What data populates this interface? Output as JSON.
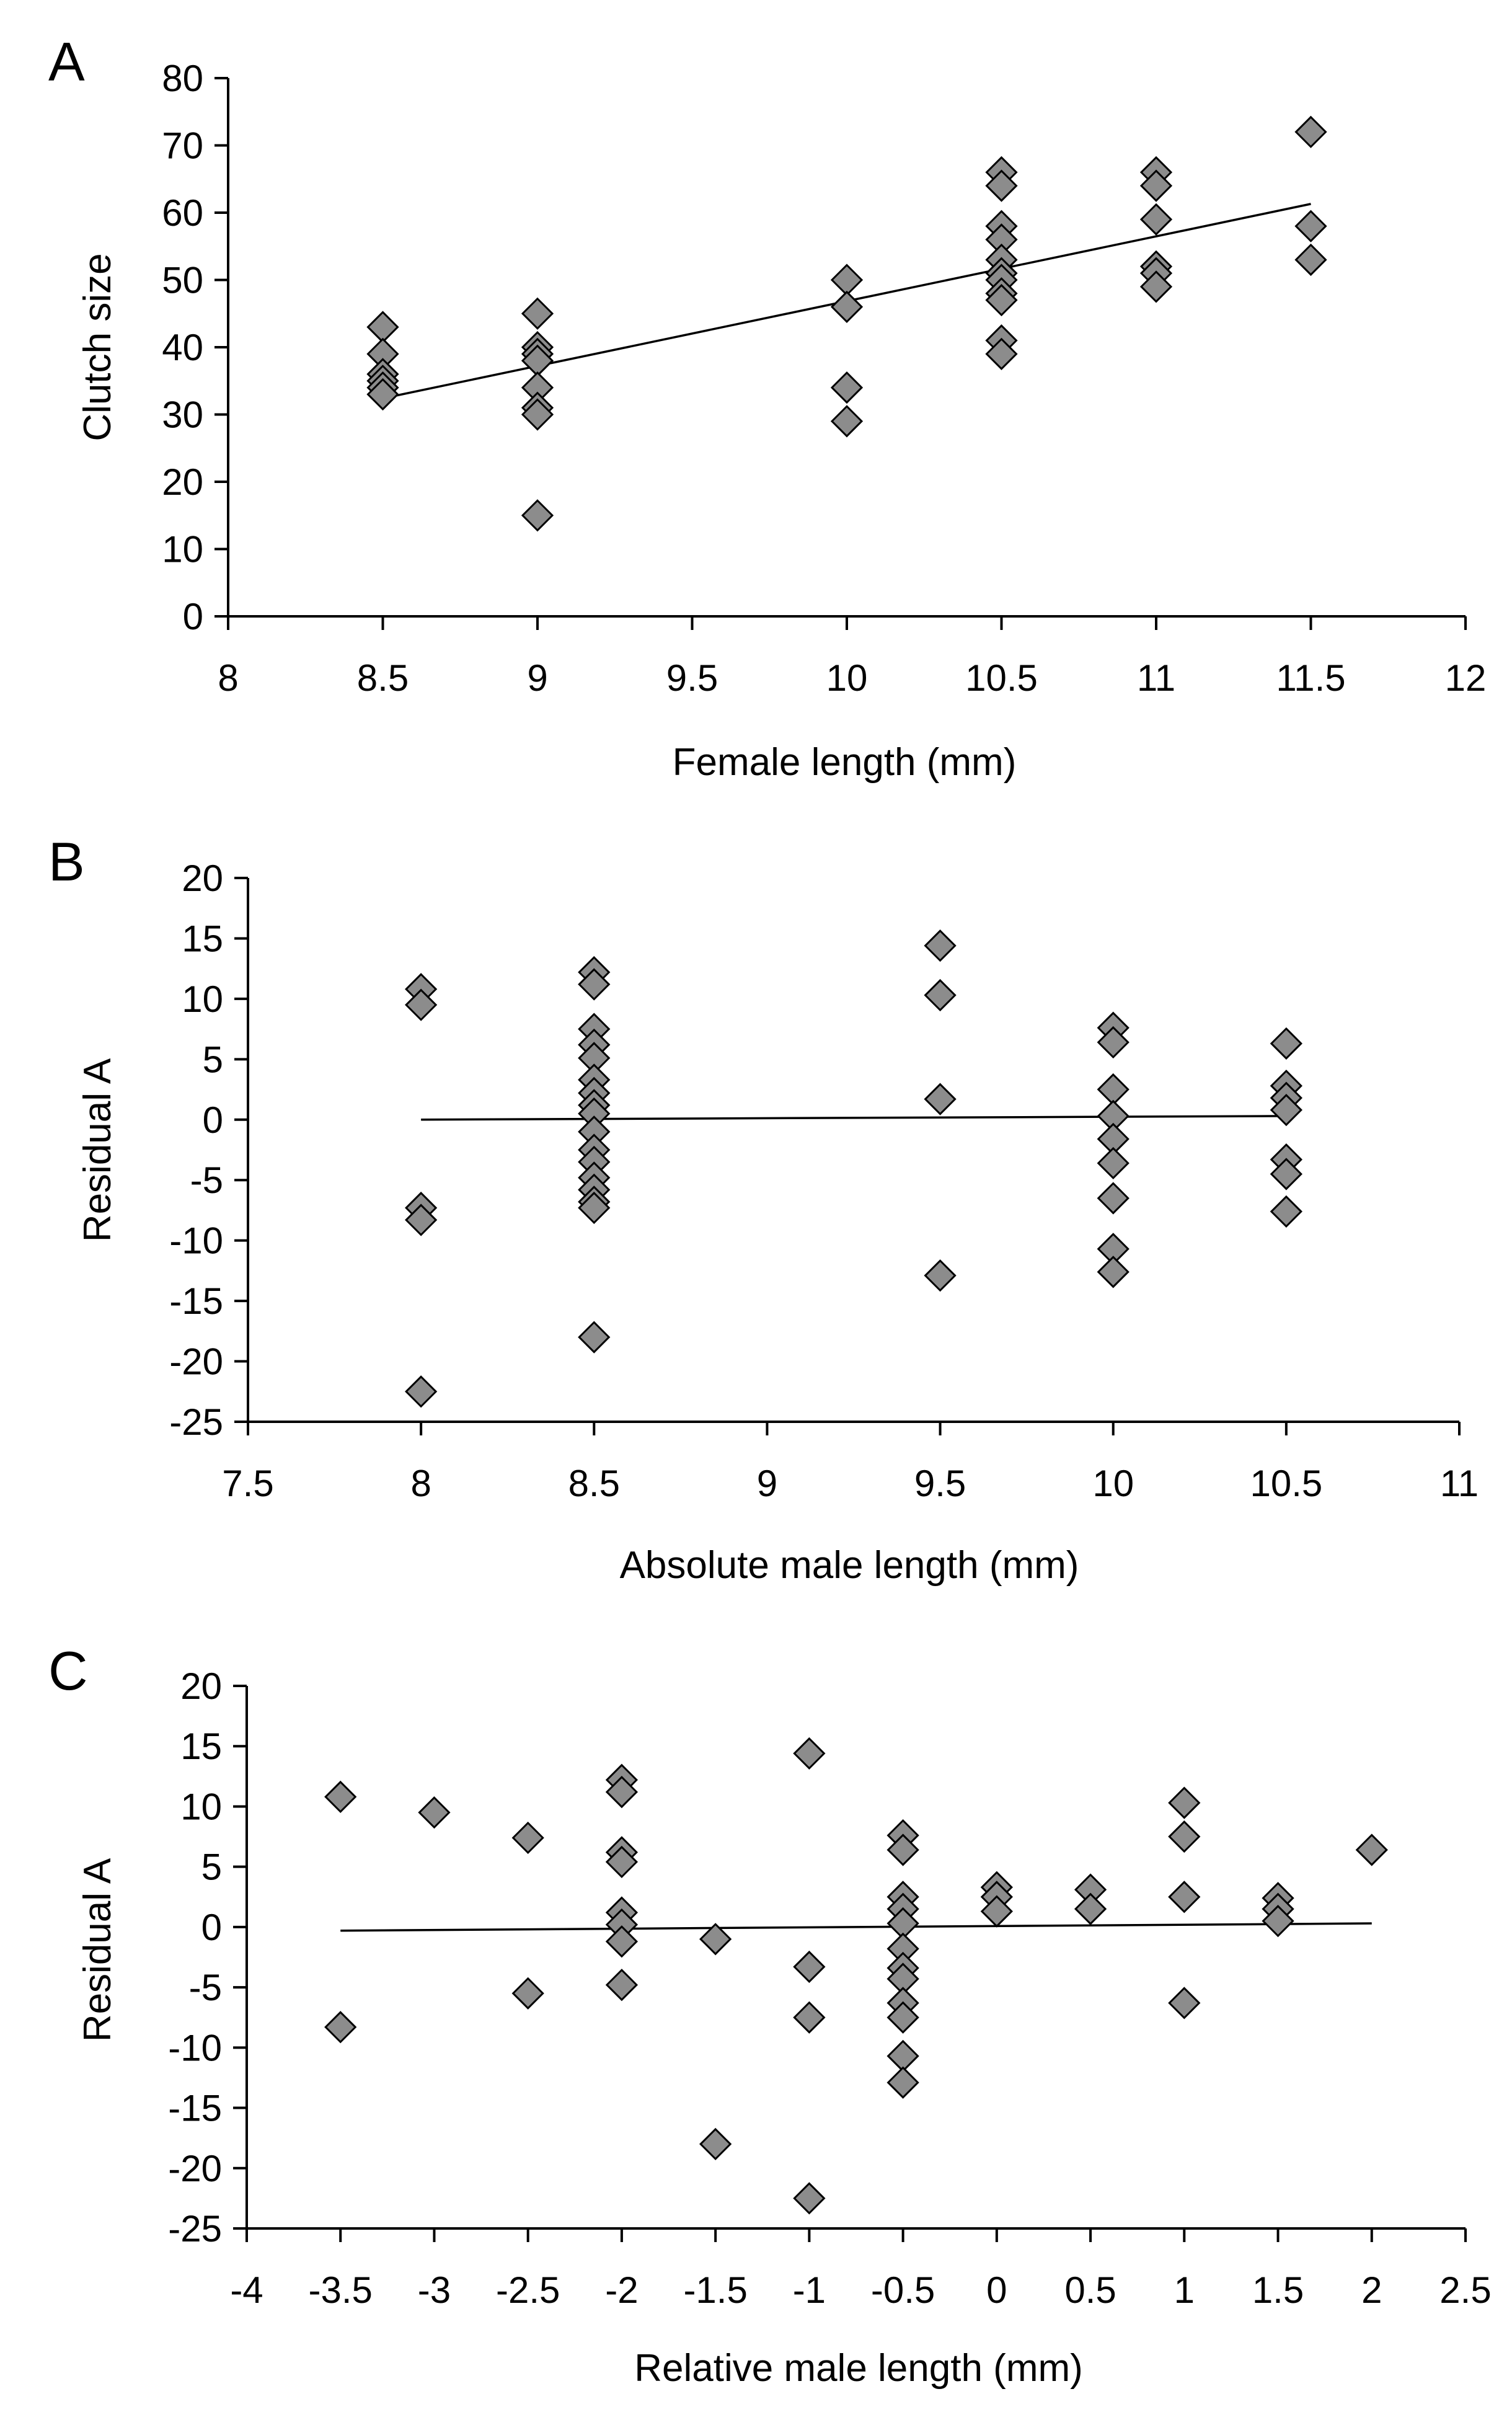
{
  "colors": {
    "marker_fill": "#8c8c8c",
    "marker_stroke": "#000000",
    "axis": "#000000",
    "trend_line": "#000000"
  },
  "chart_data": [
    {
      "type": "scatter",
      "panel_label": "A",
      "xlabel": "Female length (mm)",
      "ylabel": "Clutch size",
      "xlim": [
        8,
        12
      ],
      "ylim": [
        0,
        80
      ],
      "xticks": [
        8,
        8.5,
        9,
        9.5,
        10,
        10.5,
        11,
        11.5,
        12
      ],
      "yticks": [
        0,
        10,
        20,
        30,
        40,
        50,
        60,
        70,
        80
      ],
      "tick_labels_x": [
        "8",
        "8.5",
        "9",
        "9.5",
        "10",
        "10.5",
        "11",
        "11.5",
        "12"
      ],
      "tick_labels_y": [
        "0",
        "10",
        "20",
        "30",
        "40",
        "50",
        "60",
        "70",
        "80"
      ],
      "marker": "diamond",
      "points": [
        [
          8.5,
          43
        ],
        [
          8.5,
          39
        ],
        [
          8.5,
          36
        ],
        [
          8.5,
          35
        ],
        [
          8.5,
          34
        ],
        [
          8.5,
          33
        ],
        [
          9,
          45
        ],
        [
          9,
          40
        ],
        [
          9,
          39
        ],
        [
          9,
          38
        ],
        [
          9,
          34
        ],
        [
          9,
          31
        ],
        [
          9,
          30
        ],
        [
          9,
          15
        ],
        [
          10,
          50
        ],
        [
          10,
          46
        ],
        [
          10,
          34
        ],
        [
          10,
          29
        ],
        [
          10.5,
          66
        ],
        [
          10.5,
          64
        ],
        [
          10.5,
          58
        ],
        [
          10.5,
          56
        ],
        [
          10.5,
          53
        ],
        [
          10.5,
          51
        ],
        [
          10.5,
          50
        ],
        [
          10.5,
          48
        ],
        [
          10.5,
          47
        ],
        [
          10.5,
          41
        ],
        [
          10.5,
          39
        ],
        [
          11,
          66
        ],
        [
          11,
          64
        ],
        [
          11,
          59
        ],
        [
          11,
          52
        ],
        [
          11,
          51
        ],
        [
          11,
          49
        ],
        [
          11.5,
          72
        ],
        [
          11.5,
          58
        ],
        [
          11.5,
          53
        ]
      ],
      "trend_line": [
        [
          8.5,
          32.4
        ],
        [
          11.5,
          61.3
        ]
      ]
    },
    {
      "type": "scatter",
      "panel_label": "B",
      "xlabel": "Absolute male length (mm)",
      "ylabel": "Residual A",
      "xlim": [
        7.5,
        11
      ],
      "ylim": [
        -25,
        20
      ],
      "xticks": [
        7.5,
        8,
        8.5,
        9,
        9.5,
        10,
        10.5,
        11
      ],
      "yticks": [
        -25,
        -20,
        -15,
        -10,
        -5,
        0,
        5,
        10,
        15,
        20
      ],
      "tick_labels_x": [
        "7.5",
        "8",
        "8.5",
        "9",
        "9.5",
        "10",
        "10.5",
        "11"
      ],
      "tick_labels_y": [
        "-25",
        "-20",
        "-15",
        "-10",
        "-5",
        "0",
        "5",
        "10",
        "15",
        "20"
      ],
      "marker": "diamond",
      "points": [
        [
          8,
          10.8
        ],
        [
          8,
          9.5
        ],
        [
          8,
          -7.3
        ],
        [
          8,
          -8.3
        ],
        [
          8,
          -22.5
        ],
        [
          8.5,
          12.2
        ],
        [
          8.5,
          11.2
        ],
        [
          8.5,
          7.5
        ],
        [
          8.5,
          6.2
        ],
        [
          8.5,
          5.1
        ],
        [
          8.5,
          3.3
        ],
        [
          8.5,
          2.2
        ],
        [
          8.5,
          1.2
        ],
        [
          8.5,
          0.5
        ],
        [
          8.5,
          -1.0
        ],
        [
          8.5,
          -2.5
        ],
        [
          8.5,
          -3.5
        ],
        [
          8.5,
          -4.8
        ],
        [
          8.5,
          -5.8
        ],
        [
          8.5,
          -6.8
        ],
        [
          8.5,
          -7.3
        ],
        [
          8.5,
          -18.0
        ],
        [
          9.5,
          14.4
        ],
        [
          9.5,
          10.3
        ],
        [
          9.5,
          1.7
        ],
        [
          9.5,
          -12.9
        ],
        [
          10,
          7.6
        ],
        [
          10,
          6.4
        ],
        [
          10,
          2.5
        ],
        [
          10,
          0.3
        ],
        [
          10,
          -1.6
        ],
        [
          10,
          -3.6
        ],
        [
          10,
          -6.5
        ],
        [
          10,
          -10.7
        ],
        [
          10,
          -12.6
        ],
        [
          10.5,
          6.3
        ],
        [
          10.5,
          2.8
        ],
        [
          10.5,
          1.8
        ],
        [
          10.5,
          0.8
        ],
        [
          10.5,
          -3.3
        ],
        [
          10.5,
          -4.5
        ],
        [
          10.5,
          -7.6
        ]
      ],
      "trend_line": [
        [
          8,
          0.0
        ],
        [
          10.5,
          0.3
        ]
      ]
    },
    {
      "type": "scatter",
      "panel_label": "C",
      "xlabel": "Relative male length (mm)",
      "ylabel": "Residual A",
      "xlim": [
        -4,
        2.5
      ],
      "ylim": [
        -25,
        20
      ],
      "xticks": [
        -4,
        -3.5,
        -3,
        -2.5,
        -2,
        -1.5,
        -1,
        -0.5,
        0,
        0.5,
        1,
        1.5,
        2,
        2.5
      ],
      "yticks": [
        -25,
        -20,
        -15,
        -10,
        -5,
        0,
        5,
        10,
        15,
        20
      ],
      "tick_labels_x": [
        "-4",
        "-3.5",
        "-3",
        "-2.5",
        "-2",
        "-1.5",
        "-1",
        "-0.5",
        "0",
        "0.5",
        "1",
        "1.5",
        "2",
        "2.5"
      ],
      "tick_labels_y": [
        "-25",
        "-20",
        "-15",
        "-10",
        "-5",
        "0",
        "5",
        "10",
        "15",
        "20"
      ],
      "marker": "diamond",
      "points": [
        [
          -3.5,
          10.8
        ],
        [
          -3.5,
          -8.3
        ],
        [
          -3,
          9.5
        ],
        [
          -2.5,
          7.4
        ],
        [
          -2.5,
          -5.5
        ],
        [
          -2,
          12.2
        ],
        [
          -2,
          11.2
        ],
        [
          -2,
          6.2
        ],
        [
          -2,
          5.4
        ],
        [
          -2,
          1.2
        ],
        [
          -2,
          0.2
        ],
        [
          -2,
          -1.2
        ],
        [
          -2,
          -4.8
        ],
        [
          -1.5,
          -1.0
        ],
        [
          -1.5,
          -18.0
        ],
        [
          -1,
          14.4
        ],
        [
          -1,
          -3.3
        ],
        [
          -1,
          -7.5
        ],
        [
          -1,
          -22.5
        ],
        [
          -0.5,
          7.6
        ],
        [
          -0.5,
          6.4
        ],
        [
          -0.5,
          2.5
        ],
        [
          -0.5,
          1.5
        ],
        [
          -0.5,
          0.3
        ],
        [
          -0.5,
          -1.8
        ],
        [
          -0.5,
          -3.4
        ],
        [
          -0.5,
          -4.3
        ],
        [
          -0.5,
          -6.3
        ],
        [
          -0.5,
          -7.5
        ],
        [
          -0.5,
          -10.7
        ],
        [
          -0.5,
          -12.9
        ],
        [
          0,
          3.3
        ],
        [
          0,
          2.5
        ],
        [
          0,
          1.3
        ],
        [
          0.5,
          3.1
        ],
        [
          0.5,
          1.5
        ],
        [
          1,
          10.3
        ],
        [
          1,
          7.5
        ],
        [
          1,
          2.5
        ],
        [
          1,
          -6.3
        ],
        [
          1.5,
          2.4
        ],
        [
          1.5,
          1.5
        ],
        [
          1.5,
          0.5
        ],
        [
          2,
          6.4
        ]
      ],
      "trend_line": [
        [
          -3.5,
          -0.3
        ],
        [
          2,
          0.3
        ]
      ]
    }
  ]
}
